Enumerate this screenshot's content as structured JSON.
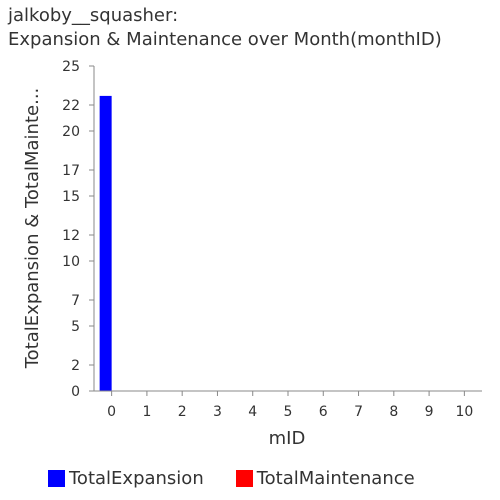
{
  "title": {
    "line1": "jalkoby__squasher:",
    "line2": "Expansion & Maintenance over Month(monthID)"
  },
  "chart_data": {
    "type": "bar",
    "title": "jalkoby__squasher: Expansion & Maintenance over Month(monthID)",
    "xlabel": "mID",
    "ylabel": "TotalExpansion & TotalMainte...",
    "categories": [
      "0",
      "1",
      "2",
      "3",
      "4",
      "5",
      "6",
      "7",
      "8",
      "9",
      "10"
    ],
    "xticks": [
      "0",
      "1",
      "2",
      "3",
      "4",
      "5",
      "6",
      "7",
      "8",
      "9",
      "10"
    ],
    "yticks": [
      "0",
      "2",
      "5",
      "7",
      "10",
      "12",
      "15",
      "17",
      "20",
      "22",
      "25"
    ],
    "ylim": [
      0,
      25
    ],
    "grid": false,
    "legend_position": "bottom",
    "series": [
      {
        "name": "TotalExpansion",
        "color": "#0000ff",
        "values": [
          22.7,
          0,
          0,
          0,
          0,
          0,
          0,
          0,
          0,
          0,
          0
        ]
      },
      {
        "name": "TotalMaintenance",
        "color": "#ff0000",
        "values": [
          0,
          0,
          0,
          0,
          0,
          0,
          0,
          0,
          0,
          0,
          0
        ]
      }
    ]
  }
}
